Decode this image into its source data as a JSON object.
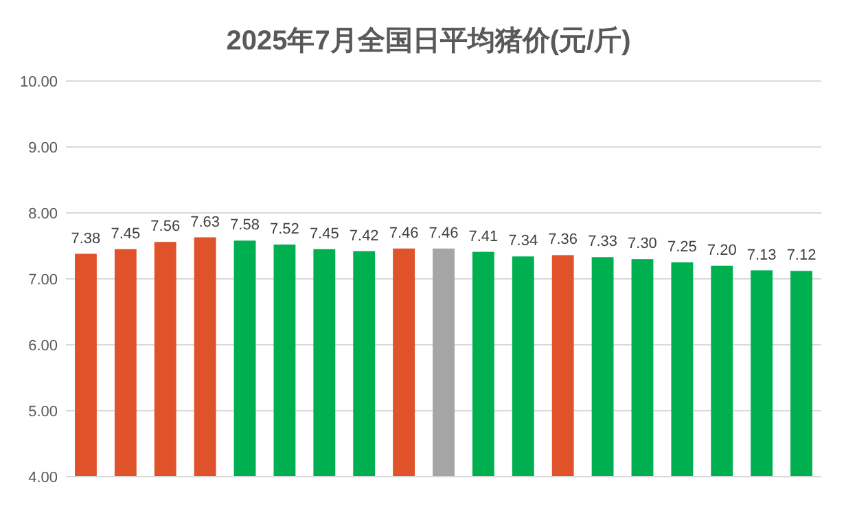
{
  "chart_data": {
    "type": "bar",
    "title": "2025年7月全国日平均猪价(元/斤)",
    "categories": [
      null,
      null,
      null,
      null,
      null,
      null,
      null,
      null,
      null,
      null,
      null,
      null,
      null,
      null,
      null,
      null,
      null,
      null,
      null
    ],
    "values": [
      7.38,
      7.45,
      7.56,
      7.63,
      7.58,
      7.52,
      7.45,
      7.42,
      7.46,
      7.46,
      7.41,
      7.34,
      7.36,
      7.33,
      7.3,
      7.25,
      7.2,
      7.13,
      7.12
    ],
    "value_labels": [
      "7.38",
      "7.45",
      "7.56",
      "7.63",
      "7.58",
      "7.52",
      "7.45",
      "7.42",
      "7.46",
      "7.46",
      "7.41",
      "7.34",
      "7.36",
      "7.33",
      "7.30",
      "7.25",
      "7.20",
      "7.13",
      "7.12"
    ],
    "colors": [
      "#e0522a",
      "#e0522a",
      "#e0522a",
      "#e0522a",
      "#00b050",
      "#00b050",
      "#00b050",
      "#00b050",
      "#e0522a",
      "#a5a5a5",
      "#00b050",
      "#00b050",
      "#e0522a",
      "#00b050",
      "#00b050",
      "#00b050",
      "#00b050",
      "#00b050",
      "#00b050"
    ],
    "ylim": [
      4,
      10
    ],
    "yticks": [
      {
        "value": 4,
        "label": "4.00"
      },
      {
        "value": 5,
        "label": "5.00"
      },
      {
        "value": 6,
        "label": "6.00"
      },
      {
        "value": 7,
        "label": "7.00"
      },
      {
        "value": 8,
        "label": "8.00"
      },
      {
        "value": 9,
        "label": "9.00"
      },
      {
        "value": 10,
        "label": "10.00"
      }
    ],
    "grid": "y"
  }
}
